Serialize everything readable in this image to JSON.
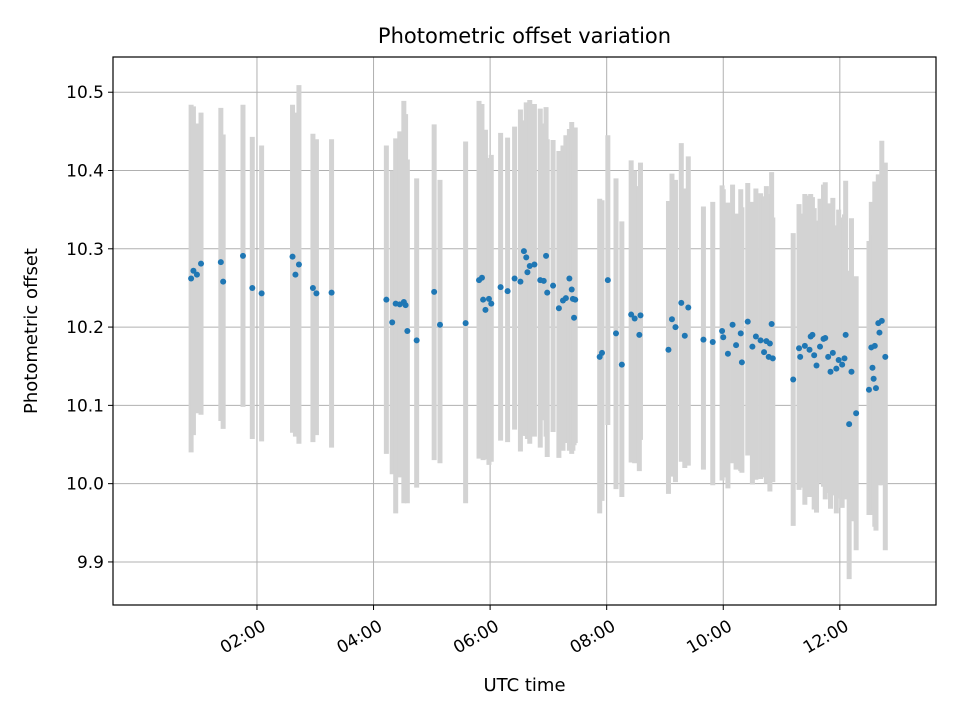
{
  "chart_data": {
    "type": "scatter",
    "title": "Photometric offset variation",
    "xlabel": "UTC time",
    "ylabel": "Photometric offset",
    "xlim_hours": [
      -0.47,
      13.65
    ],
    "ylim": [
      9.845,
      10.545
    ],
    "grid": true,
    "x_ticks": [
      {
        "hour": 2,
        "label": "02:00"
      },
      {
        "hour": 4,
        "label": "04:00"
      },
      {
        "hour": 6,
        "label": "06:00"
      },
      {
        "hour": 8,
        "label": "08:00"
      },
      {
        "hour": 10,
        "label": "10:00"
      },
      {
        "hour": 12,
        "label": "12:00"
      }
    ],
    "y_ticks": [
      {
        "value": 9.9,
        "label": "9.9"
      },
      {
        "value": 10.0,
        "label": "10.0"
      },
      {
        "value": 10.1,
        "label": "10.1"
      },
      {
        "value": 10.2,
        "label": "10.2"
      },
      {
        "value": 10.3,
        "label": "10.3"
      },
      {
        "value": 10.4,
        "label": "10.4"
      },
      {
        "value": 10.5,
        "label": "10.5"
      }
    ],
    "colors": {
      "points": "#1f77b4",
      "errorbars": "#d3d3d3",
      "grid": "#b0b0b0"
    },
    "series": [
      {
        "name": "offset",
        "points": [
          [
            0.87,
            10.262,
            10.04,
            10.484
          ],
          [
            0.91,
            10.272,
            10.062,
            10.482
          ],
          [
            0.97,
            10.267,
            10.09,
            10.46
          ],
          [
            1.04,
            10.281,
            10.088,
            10.474
          ],
          [
            1.38,
            10.283,
            10.08,
            10.48
          ],
          [
            1.42,
            10.258,
            10.07,
            10.446
          ],
          [
            1.76,
            10.291,
            10.098,
            10.484
          ],
          [
            1.92,
            10.25,
            10.057,
            10.443
          ],
          [
            2.08,
            10.243,
            10.054,
            10.432
          ],
          [
            2.61,
            10.29,
            10.065,
            10.484
          ],
          [
            2.66,
            10.267,
            10.06,
            10.474
          ],
          [
            2.72,
            10.28,
            10.051,
            10.509
          ],
          [
            2.96,
            10.25,
            10.053,
            10.447
          ],
          [
            3.02,
            10.243,
            10.062,
            10.44
          ],
          [
            3.28,
            10.244,
            10.046,
            10.44
          ],
          [
            4.22,
            10.235,
            10.038,
            10.432
          ],
          [
            4.32,
            10.206,
            10.012,
            10.4
          ],
          [
            4.38,
            10.23,
            9.962,
            10.441
          ],
          [
            4.45,
            10.229,
            10.008,
            10.45
          ],
          [
            4.52,
            10.232,
            9.975,
            10.489
          ],
          [
            4.55,
            10.228,
            10.015,
            10.472
          ],
          [
            4.58,
            10.195,
            9.975,
            10.414
          ],
          [
            4.74,
            10.183,
            9.995,
            10.39
          ],
          [
            5.04,
            10.245,
            10.03,
            10.459
          ],
          [
            5.14,
            10.203,
            10.026,
            10.388
          ],
          [
            5.58,
            10.205,
            9.975,
            10.437
          ],
          [
            5.81,
            10.26,
            10.032,
            10.489
          ],
          [
            5.86,
            10.263,
            10.039,
            10.485
          ],
          [
            5.88,
            10.235,
            10.03,
            10.44
          ],
          [
            5.92,
            10.222,
            10.031,
            10.452
          ],
          [
            5.98,
            10.236,
            10.024,
            10.416
          ],
          [
            6.02,
            10.23,
            10.028,
            10.42
          ],
          [
            6.18,
            10.251,
            10.055,
            10.448
          ],
          [
            6.3,
            10.246,
            10.053,
            10.442
          ],
          [
            6.42,
            10.262,
            10.069,
            10.456
          ],
          [
            6.52,
            10.258,
            10.041,
            10.478
          ],
          [
            6.58,
            10.297,
            10.061,
            10.464
          ],
          [
            6.62,
            10.289,
            10.061,
            10.487
          ],
          [
            6.64,
            10.27,
            10.057,
            10.479
          ],
          [
            6.68,
            10.278,
            10.051,
            10.49
          ],
          [
            6.76,
            10.28,
            10.06,
            10.485
          ],
          [
            6.86,
            10.26,
            10.046,
            10.479
          ],
          [
            6.92,
            10.259,
            10.081,
            10.46
          ],
          [
            6.96,
            10.291,
            10.06,
            10.481
          ],
          [
            6.98,
            10.244,
            10.034,
            10.44
          ],
          [
            7.08,
            10.253,
            10.066,
            10.439
          ],
          [
            7.18,
            10.224,
            10.033,
            10.425
          ],
          [
            7.25,
            10.234,
            10.042,
            10.432
          ],
          [
            7.3,
            10.237,
            10.052,
            10.445
          ],
          [
            7.36,
            10.262,
            10.042,
            10.453
          ],
          [
            7.4,
            10.248,
            10.038,
            10.462
          ],
          [
            7.42,
            10.236,
            10.042,
            10.442
          ],
          [
            7.44,
            10.212,
            10.049,
            10.425
          ],
          [
            7.46,
            10.235,
            10.052,
            10.455
          ],
          [
            7.88,
            10.162,
            9.962,
            10.364
          ],
          [
            7.92,
            10.167,
            9.978,
            10.362
          ],
          [
            8.02,
            10.26,
            10.075,
            10.445
          ],
          [
            8.16,
            10.192,
            9.993,
            10.39
          ],
          [
            8.26,
            10.152,
            9.983,
            10.335
          ],
          [
            8.42,
            10.216,
            10.027,
            10.413
          ],
          [
            8.48,
            10.211,
            10.026,
            10.4
          ],
          [
            8.56,
            10.19,
            10.016,
            10.38
          ],
          [
            8.58,
            10.215,
            10.056,
            10.41
          ],
          [
            9.06,
            10.171,
            9.987,
            10.361
          ],
          [
            9.12,
            10.21,
            10.009,
            10.396
          ],
          [
            9.18,
            10.2,
            10.002,
            10.388
          ],
          [
            9.28,
            10.231,
            10.028,
            10.435
          ],
          [
            9.34,
            10.189,
            10.02,
            10.377
          ],
          [
            9.4,
            10.225,
            10.023,
            10.418
          ],
          [
            9.66,
            10.184,
            10.018,
            10.354
          ],
          [
            9.82,
            10.181,
            9.998,
            10.36
          ],
          [
            9.98,
            10.195,
            10.004,
            10.381
          ],
          [
            10.0,
            10.187,
            10.008,
            10.376
          ],
          [
            10.08,
            10.166,
            9.994,
            10.359
          ],
          [
            10.16,
            10.203,
            10.026,
            10.382
          ],
          [
            10.22,
            10.177,
            10.018,
            10.345
          ],
          [
            10.3,
            10.192,
            10.016,
            10.376
          ],
          [
            10.32,
            10.155,
            10.014,
            10.353
          ],
          [
            10.42,
            10.207,
            10.036,
            10.384
          ],
          [
            10.5,
            10.175,
            9.999,
            10.36
          ],
          [
            10.56,
            10.188,
            10.005,
            10.377
          ],
          [
            10.64,
            10.183,
            10.006,
            10.371
          ],
          [
            10.7,
            10.168,
            10.008,
            10.367
          ],
          [
            10.74,
            10.182,
            10.0,
            10.38
          ],
          [
            10.78,
            10.162,
            10.005,
            10.355
          ],
          [
            10.8,
            10.179,
            9.99,
            10.37
          ],
          [
            10.83,
            10.204,
            10.019,
            10.398
          ],
          [
            10.85,
            10.16,
            10.002,
            10.34
          ],
          [
            11.2,
            10.133,
            9.946,
            10.32
          ],
          [
            11.3,
            10.173,
            9.992,
            10.357
          ],
          [
            11.32,
            10.162,
            9.995,
            10.345
          ],
          [
            11.4,
            10.176,
            9.973,
            10.37
          ],
          [
            11.48,
            10.171,
            9.983,
            10.368
          ],
          [
            11.5,
            10.188,
            9.995,
            10.37
          ],
          [
            11.53,
            10.19,
            9.988,
            10.366
          ],
          [
            11.56,
            10.164,
            9.967,
            10.352
          ],
          [
            11.6,
            10.151,
            9.963,
            10.336
          ],
          [
            11.66,
            10.175,
            10.001,
            10.364
          ],
          [
            11.72,
            10.185,
            9.996,
            10.382
          ],
          [
            11.75,
            10.186,
            9.98,
            10.385
          ],
          [
            11.8,
            10.162,
            9.988,
            10.358
          ],
          [
            11.84,
            10.143,
            9.968,
            10.33
          ],
          [
            11.88,
            10.167,
            9.985,
            10.365
          ],
          [
            11.94,
            10.147,
            9.962,
            10.33
          ],
          [
            11.98,
            10.158,
            9.981,
            10.35
          ],
          [
            12.04,
            10.152,
            9.969,
            10.34
          ],
          [
            12.08,
            10.16,
            9.98,
            10.344
          ],
          [
            12.1,
            10.19,
            9.996,
            10.387
          ],
          [
            12.16,
            10.076,
            9.878,
            10.272
          ],
          [
            12.2,
            10.143,
            9.952,
            10.339
          ],
          [
            12.28,
            10.09,
            9.915,
            10.265
          ],
          [
            12.5,
            10.12,
            9.96,
            10.31
          ],
          [
            12.54,
            10.174,
            9.99,
            10.36
          ],
          [
            12.56,
            10.148,
            9.965,
            10.34
          ],
          [
            12.58,
            10.134,
            9.96,
            10.318
          ],
          [
            12.6,
            10.176,
            9.945,
            10.386
          ],
          [
            12.62,
            10.122,
            9.94,
            10.305
          ],
          [
            12.66,
            10.205,
            10.016,
            10.395
          ],
          [
            12.68,
            10.193,
            9.998,
            10.382
          ],
          [
            12.72,
            10.208,
            9.998,
            10.438
          ],
          [
            12.78,
            10.162,
            9.915,
            10.41
          ]
        ]
      }
    ]
  }
}
